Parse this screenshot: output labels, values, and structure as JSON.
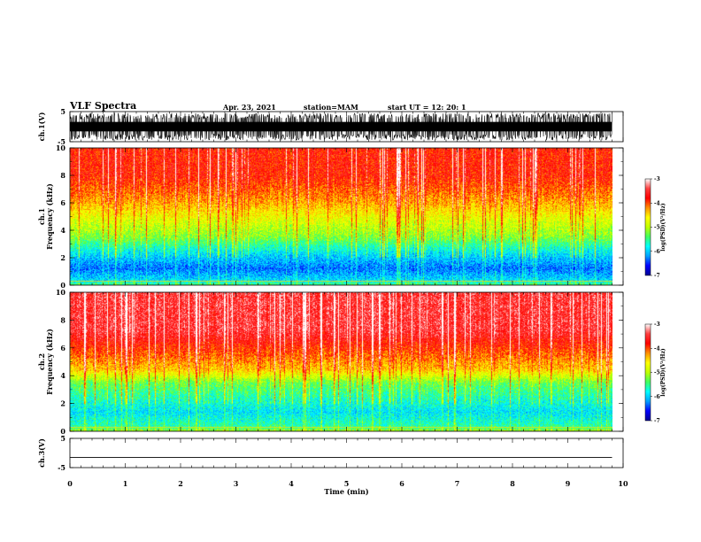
{
  "header": {
    "title": "VLF Spectra",
    "date": "Apr. 23, 2021",
    "station": "station=MAM",
    "start": "start  UT  =    12: 20: 1"
  },
  "colors": {
    "spectrum": [
      "#000090",
      "#0000ff",
      "#00a0ff",
      "#00ffff",
      "#40ff60",
      "#c0ff00",
      "#ffff00",
      "#ff9000",
      "#ff0000",
      "#ff4040",
      "#ffffff"
    ],
    "waveform": "#000000"
  },
  "chart_data": [
    {
      "type": "line",
      "name": "ch1-waveform",
      "ylabel": "ch.1(V)",
      "ylim": [
        -5,
        5
      ],
      "yticks": [
        "5",
        "-5"
      ],
      "xlim": [
        0,
        10
      ],
      "description_values": {
        "amplitude_range": [
          -4.5,
          4.5
        ]
      }
    },
    {
      "type": "heatmap",
      "name": "ch1-spectrogram",
      "ylabel": "ch.1  Frequency (kHz)",
      "ylabel_lines": [
        "ch.1",
        "Frequency (kHz)"
      ],
      "ylim": [
        0,
        10
      ],
      "yticks": [
        "0",
        "2",
        "4",
        "6",
        "8",
        "10"
      ],
      "xlim": [
        0,
        10
      ],
      "colorbar": {
        "label": "log(PSD)(V²/Hz)",
        "range": [
          -7,
          -3
        ],
        "ticks": [
          "-3",
          "-4",
          "-5",
          "-6",
          "-7"
        ]
      },
      "bands_khz": [
        {
          "from": 0,
          "to": 0.3,
          "log_psd": -5.5
        },
        {
          "from": 0.3,
          "to": 2.2,
          "log_psd": -6.3
        },
        {
          "from": 2.2,
          "to": 3.5,
          "log_psd": -5.6
        },
        {
          "from": 3.5,
          "to": 6.0,
          "log_psd": -4.8
        },
        {
          "from": 6.0,
          "to": 10,
          "log_psd": -3.8
        }
      ]
    },
    {
      "type": "heatmap",
      "name": "ch2-spectrogram",
      "ylabel": "ch.2  Frequency (kHz)",
      "ylabel_lines": [
        "ch.2",
        "Frequency (kHz)"
      ],
      "ylim": [
        0,
        10
      ],
      "yticks": [
        "0",
        "2",
        "4",
        "6",
        "8",
        "10"
      ],
      "xlim": [
        0,
        10
      ],
      "colorbar": {
        "label": "log(PSD)(V²/Hz)",
        "range": [
          -7,
          -3
        ],
        "ticks": [
          "-3",
          "-4",
          "-5",
          "-6",
          "-7"
        ]
      },
      "bands_khz": [
        {
          "from": 0,
          "to": 0.3,
          "log_psd": -5.2
        },
        {
          "from": 0.3,
          "to": 2.5,
          "log_psd": -5.9
        },
        {
          "from": 2.5,
          "to": 4.5,
          "log_psd": -5.3
        },
        {
          "from": 4.5,
          "to": 10,
          "log_psd": -3.5
        }
      ]
    },
    {
      "type": "line",
      "name": "ch3-waveform",
      "ylabel": "ch.3(V)",
      "ylim": [
        -5,
        5
      ],
      "yticks": [
        "5",
        "-5"
      ],
      "xlim": [
        0,
        10
      ],
      "values_constant": -1.5
    }
  ],
  "xaxis": {
    "label": "Time  (min)",
    "ticks": [
      "0",
      "1",
      "2",
      "3",
      "4",
      "5",
      "6",
      "7",
      "8",
      "9",
      "10"
    ],
    "data_end_min": 9.8
  }
}
